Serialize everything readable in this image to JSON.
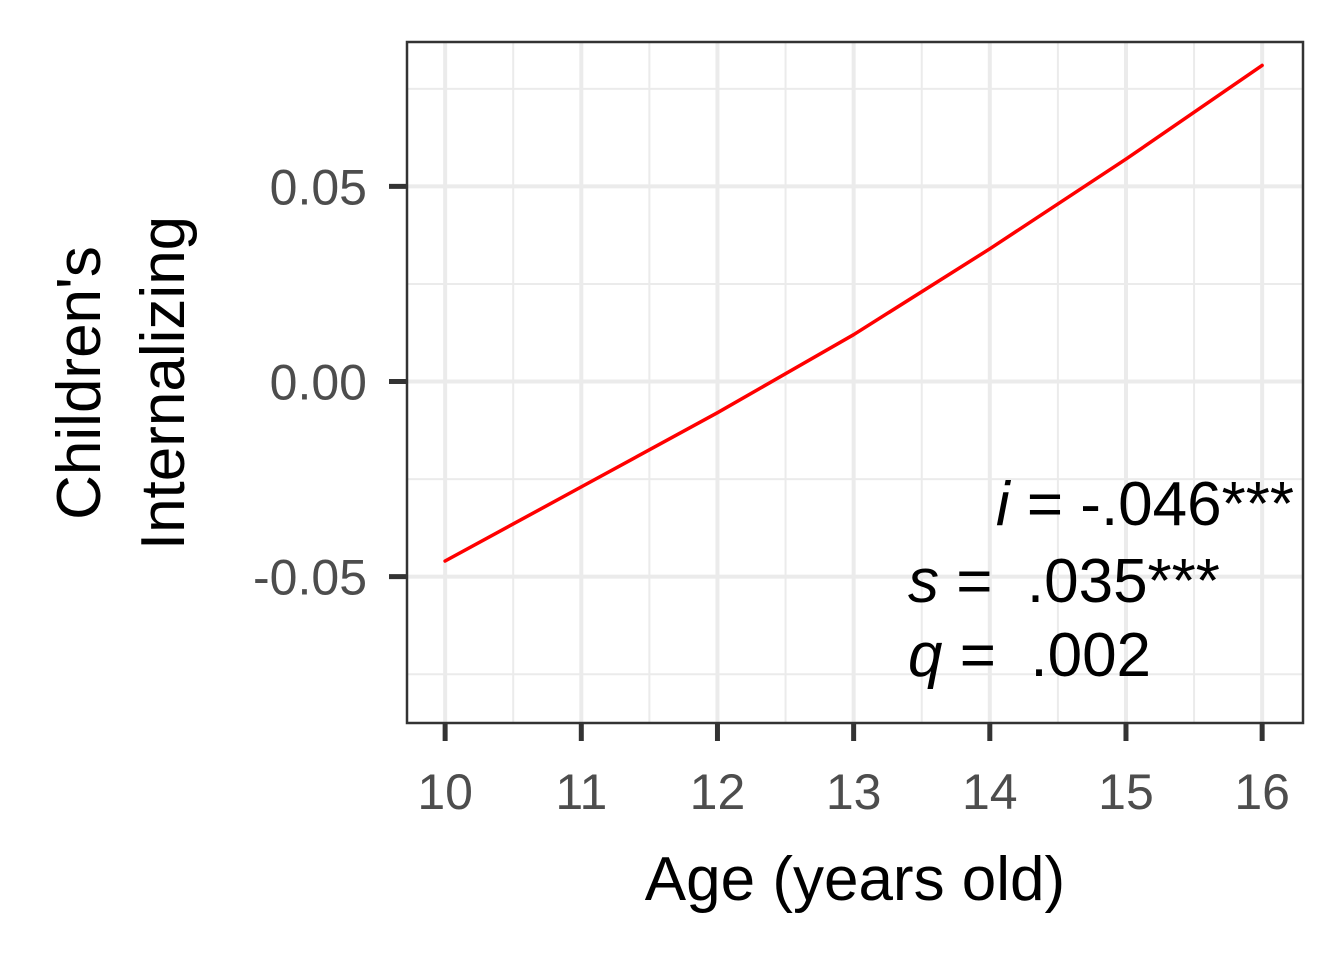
{
  "chart_data": {
    "type": "line",
    "xlabel": "Age (years old)",
    "ylabel_lines": [
      "Children's",
      "Internalizing"
    ],
    "xlim": [
      9.72,
      16.3
    ],
    "ylim": [
      -0.0875,
      0.087
    ],
    "x_ticks": [
      10,
      11,
      12,
      13,
      14,
      15,
      16
    ],
    "x_tick_labels": [
      "10",
      "11",
      "12",
      "13",
      "14",
      "15",
      "16"
    ],
    "y_ticks": [
      -0.05,
      0.0,
      0.05
    ],
    "y_tick_labels": [
      "-0.05",
      "0.00",
      "0.05"
    ],
    "y_minor_ticks": [
      -0.075,
      -0.025,
      0.025,
      0.075
    ],
    "x_minor_ticks": [
      10.5,
      11.5,
      12.5,
      13.5,
      14.5,
      15.5
    ],
    "grid": true,
    "series": [
      {
        "color": "#ff0000",
        "x": [
          10,
          11,
          12,
          13,
          14,
          15,
          16
        ],
        "y": [
          -0.046,
          -0.027,
          -0.008,
          0.012,
          0.034,
          0.057,
          0.081
        ]
      }
    ],
    "annotations": [
      {
        "symbol": "i",
        "text": " = -.046***"
      },
      {
        "symbol": "s",
        "text": " =  .035***"
      },
      {
        "symbol": "q",
        "text": " =  .002"
      }
    ]
  }
}
